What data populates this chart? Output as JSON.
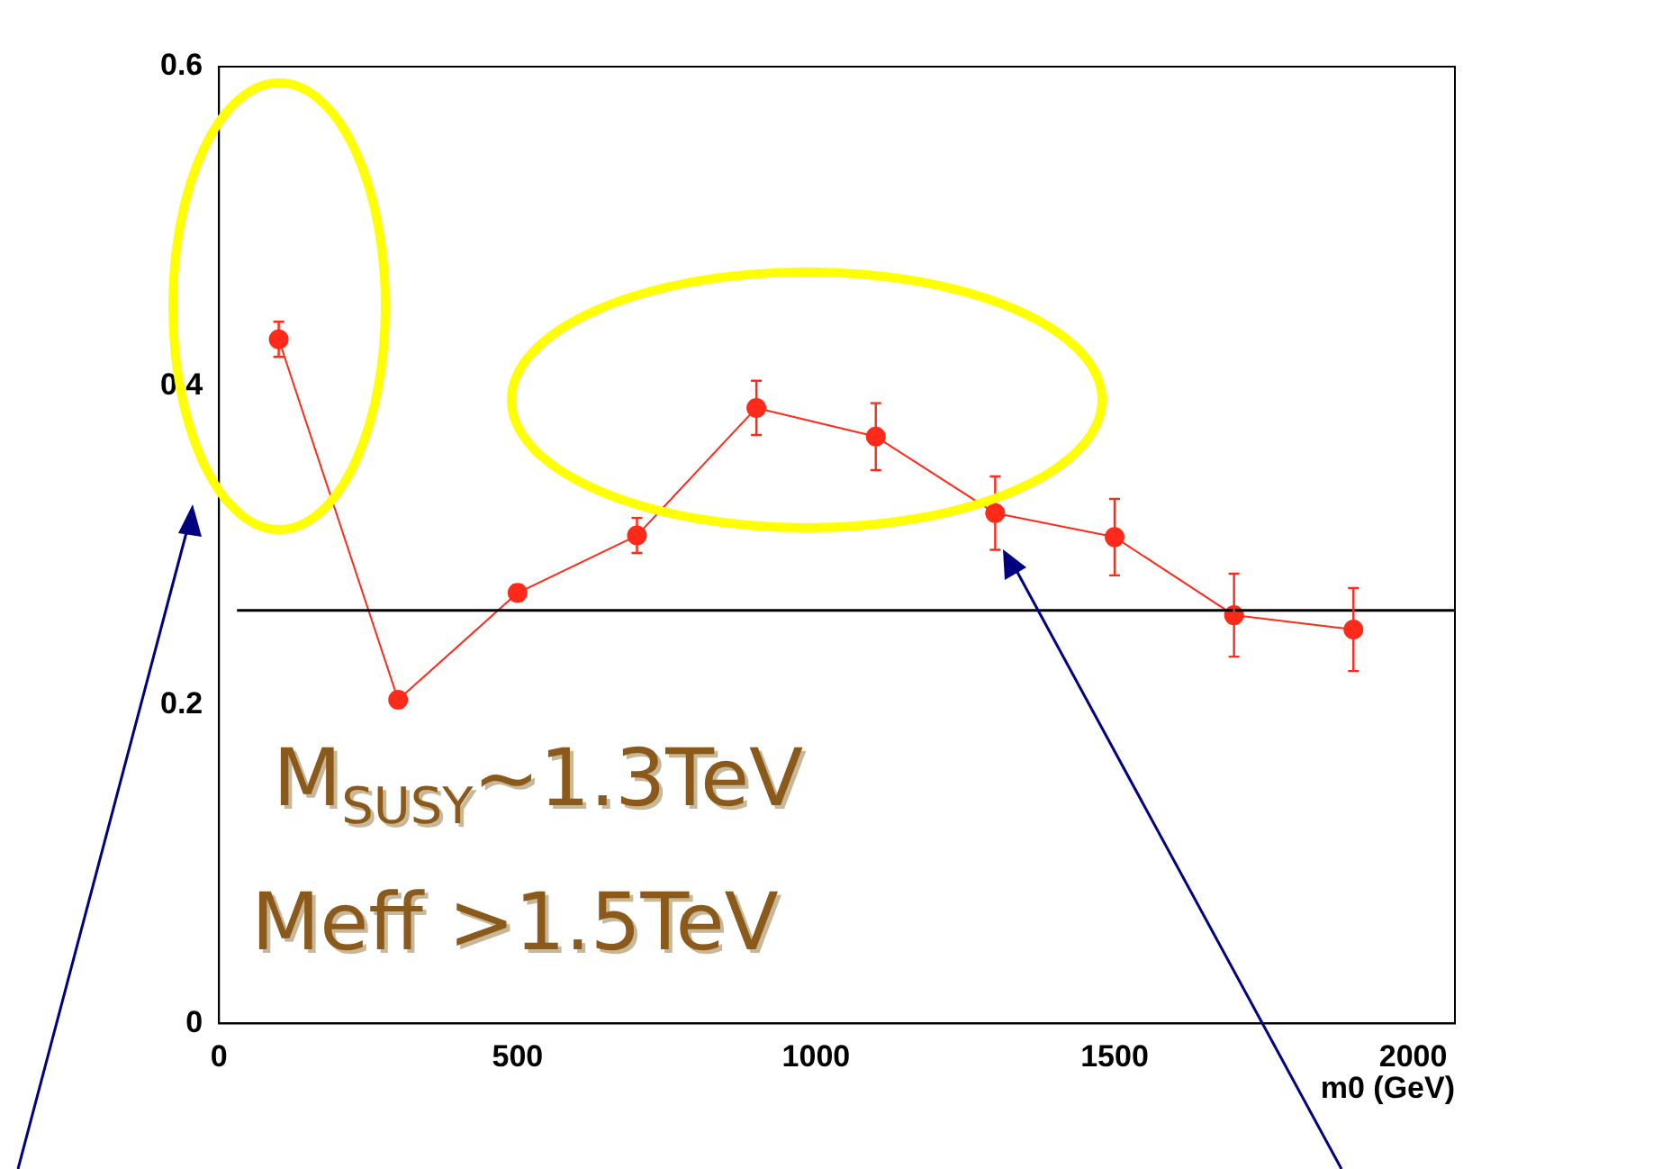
{
  "chart_data": {
    "type": "line",
    "xlabel": "m0 (GeV)",
    "x": [
      100,
      300,
      500,
      700,
      900,
      1100,
      1300,
      1500,
      1700,
      1900
    ],
    "series": [
      {
        "color": "#ff2a1a",
        "values": [
          0.429,
          0.203,
          0.27,
          0.306,
          0.386,
          0.368,
          0.32,
          0.305,
          0.256,
          0.247
        ],
        "errors": [
          0.011,
          null,
          0.005,
          0.011,
          0.017,
          0.021,
          0.023,
          0.024,
          0.026,
          0.026
        ]
      }
    ],
    "xlim": [
      0,
      2070
    ],
    "xticks": [
      0,
      500,
      1000,
      1500,
      2000
    ],
    "ylim": [
      0,
      0.6
    ],
    "yticks": [
      0,
      0.2,
      0.4,
      0.6
    ],
    "ref_lines": [
      {
        "axis": "y",
        "value": 0.259,
        "color": "#000000"
      }
    ],
    "annotations": [
      "M$_{SUSY}$~1.3TeV",
      "Meff >1.5TeV"
    ],
    "grid": false,
    "legend": false,
    "marker": "circle",
    "line_style": "solid"
  }
}
